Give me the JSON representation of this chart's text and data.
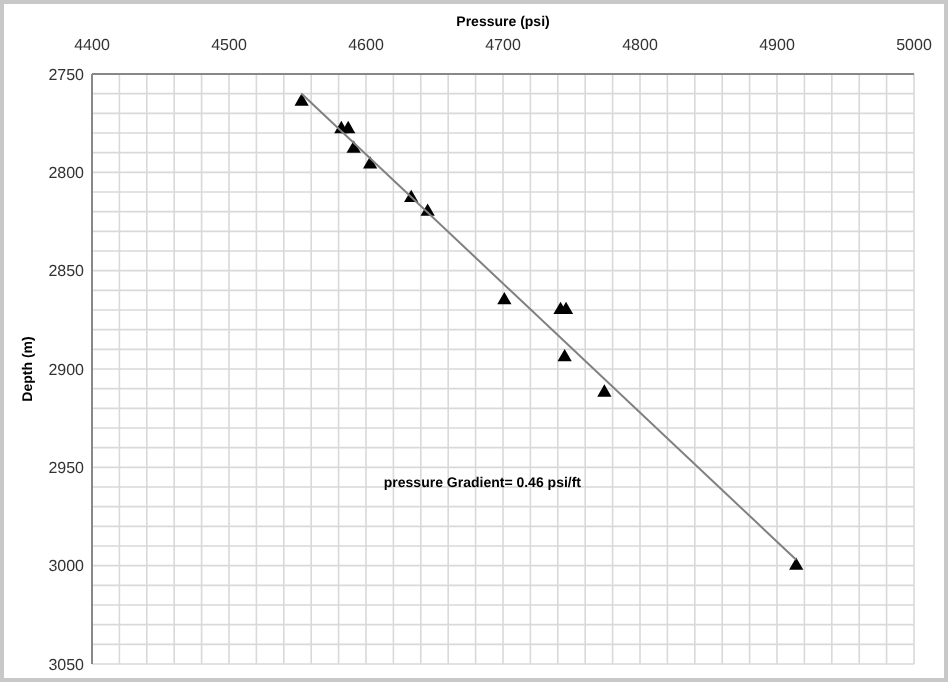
{
  "chart_data": {
    "type": "scatter",
    "xlabel": "Pressure (psi)",
    "ylabel": "Depth (m)",
    "xlim": [
      4400,
      5000
    ],
    "ylim": [
      3050,
      2750
    ],
    "xticks": [
      4400,
      {
        "value": 4420,
        "label": null
      },
      {
        "value": 4440,
        "label": null
      },
      {
        "value": 4460,
        "label": null
      },
      {
        "value": 4480,
        "label": null
      },
      4500,
      {
        "value": 4520,
        "label": null
      },
      {
        "value": 4540,
        "label": null
      },
      {
        "value": 4560,
        "label": null
      },
      {
        "value": 4580,
        "label": null
      },
      4600,
      {
        "value": 4620,
        "label": null
      },
      {
        "value": 4640,
        "label": null
      },
      {
        "value": 4660,
        "label": null
      },
      {
        "value": 4680,
        "label": null
      },
      4700,
      {
        "value": 4720,
        "label": null
      },
      {
        "value": 4740,
        "label": null
      },
      {
        "value": 4760,
        "label": null
      },
      {
        "value": 4780,
        "label": null
      },
      4800,
      {
        "value": 4820,
        "label": null
      },
      {
        "value": 4840,
        "label": null
      },
      {
        "value": 4860,
        "label": null
      },
      {
        "value": 4880,
        "label": null
      },
      4900,
      {
        "value": 4920,
        "label": null
      },
      {
        "value": 4940,
        "label": null
      },
      {
        "value": 4960,
        "label": null
      },
      {
        "value": 4980,
        "label": null
      },
      5000
    ],
    "yticks": [
      2750,
      {
        "value": 2760,
        "label": null
      },
      {
        "value": 2770,
        "label": null
      },
      {
        "value": 2780,
        "label": null
      },
      {
        "value": 2790,
        "label": null
      },
      2800,
      {
        "value": 2810,
        "label": null
      },
      {
        "value": 2820,
        "label": null
      },
      {
        "value": 2830,
        "label": null
      },
      {
        "value": 2840,
        "label": null
      },
      2850,
      {
        "value": 2860,
        "label": null
      },
      {
        "value": 2870,
        "label": null
      },
      {
        "value": 2880,
        "label": null
      },
      {
        "value": 2890,
        "label": null
      },
      2900,
      {
        "value": 2910,
        "label": null
      },
      {
        "value": 2920,
        "label": null
      },
      {
        "value": 2930,
        "label": null
      },
      {
        "value": 2940,
        "label": null
      },
      2950,
      {
        "value": 2960,
        "label": null
      },
      {
        "value": 2970,
        "label": null
      },
      {
        "value": 2980,
        "label": null
      },
      {
        "value": 2990,
        "label": null
      },
      3000,
      {
        "value": 3010,
        "label": null
      },
      {
        "value": 3020,
        "label": null
      },
      {
        "value": 3030,
        "label": null
      },
      {
        "value": 3040,
        "label": null
      },
      3050
    ],
    "grid": true,
    "series": [
      {
        "marker": "triangle",
        "color": "#000000",
        "x": [
          4553,
          4582,
          4587,
          4591,
          4603,
          4633,
          4645,
          4701,
          4742,
          4746,
          4745,
          4774,
          4914
        ],
        "values": [
          2764,
          2778,
          2778,
          2788,
          2796,
          2813,
          2820,
          2865,
          2870,
          2870,
          2894,
          2912,
          3000
        ]
      },
      {
        "type": "line",
        "marker": "none",
        "color": "#808080",
        "x": [
          4553,
          4914
        ],
        "values": [
          2760,
          2997
        ]
      }
    ],
    "annotations": [
      "pressure Gradient= 0.46 psi/ft"
    ]
  }
}
